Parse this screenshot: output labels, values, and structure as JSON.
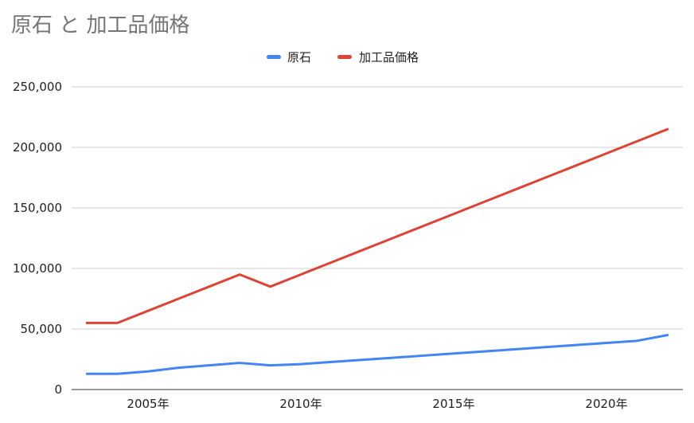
{
  "chart_data": {
    "type": "line",
    "title": "原石 と 加工品価格",
    "xlabel": "",
    "ylabel": "",
    "x": [
      2003,
      2004,
      2005,
      2006,
      2007,
      2008,
      2009,
      2010,
      2011,
      2012,
      2013,
      2014,
      2015,
      2016,
      2017,
      2018,
      2019,
      2020,
      2021,
      2022
    ],
    "series": [
      {
        "name": "原石",
        "color": "#4285f4",
        "values": [
          13000,
          13000,
          15000,
          18000,
          20000,
          22000,
          20000,
          21000,
          22750,
          24500,
          26250,
          28000,
          29750,
          31500,
          33250,
          35000,
          36750,
          38500,
          40250,
          45000
        ]
      },
      {
        "name": "加工品価格",
        "color": "#db4437",
        "values": [
          55000,
          55000,
          65000,
          75000,
          85000,
          95000,
          85000,
          95000,
          105000,
          115000,
          125000,
          135000,
          145000,
          155000,
          165000,
          175000,
          185000,
          195000,
          205000,
          215000
        ]
      }
    ],
    "xticks": [
      {
        "value": 2005,
        "label": "2005年"
      },
      {
        "value": 2010,
        "label": "2010年"
      },
      {
        "value": 2015,
        "label": "2015年"
      },
      {
        "value": 2020,
        "label": "2020年"
      }
    ],
    "yticks": [
      {
        "value": 0,
        "label": "0"
      },
      {
        "value": 50000,
        "label": "50,000"
      },
      {
        "value": 100000,
        "label": "100,000"
      },
      {
        "value": 150000,
        "label": "150,000"
      },
      {
        "value": 200000,
        "label": "200,000"
      },
      {
        "value": 250000,
        "label": "250,000"
      }
    ],
    "ylim": [
      0,
      250000
    ],
    "xlim": [
      2002.5,
      2022.5
    ],
    "grid": true,
    "legend_position": "top-center",
    "gridline_color": "#cccccc",
    "axis_color": "#333333"
  }
}
